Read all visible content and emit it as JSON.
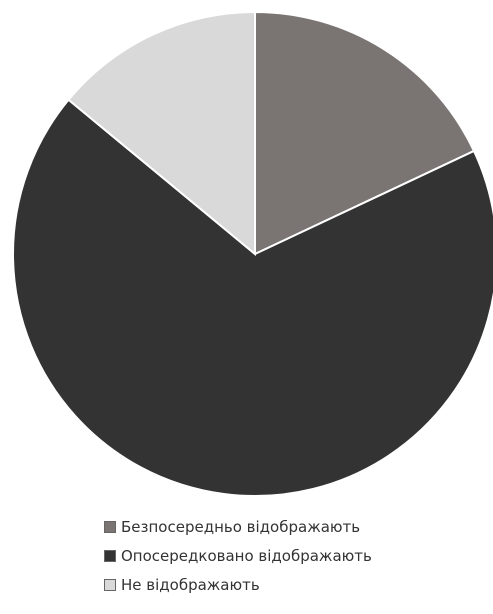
{
  "chart_data": {
    "type": "pie",
    "title": "",
    "start_angle_deg": 0,
    "direction": "clockwise",
    "legend_position": "bottom",
    "series": [
      {
        "name": "",
        "slices": [
          {
            "label": "Безпосередньо відображають",
            "value": 18,
            "color": "#7a7472"
          },
          {
            "label": "Опосередковано відображають",
            "value": 68,
            "color": "#333333"
          },
          {
            "label": "Не відображають",
            "value": 14,
            "color": "#d9d9d9"
          }
        ]
      }
    ]
  }
}
